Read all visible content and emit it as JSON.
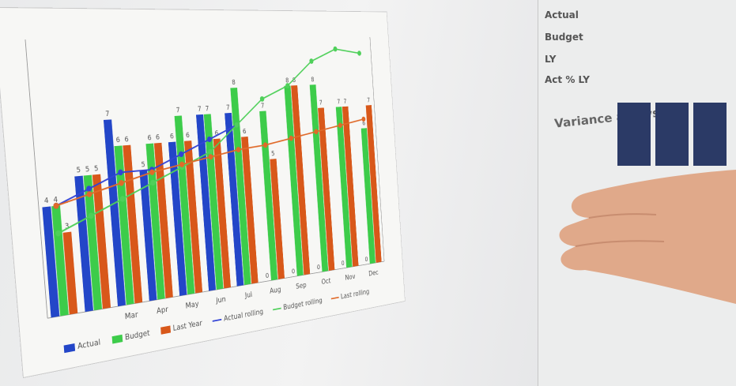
{
  "chart_data": {
    "type": "bar",
    "categories": [
      null,
      null,
      "Mar",
      "Apr",
      "May",
      "Jun",
      "Jul",
      "Aug",
      "Sep",
      "Oct",
      "Nov",
      "Dec"
    ],
    "ylim": [
      0,
      10
    ],
    "series": [
      {
        "name": "Actual",
        "color": "#2346c8",
        "kind": "bar",
        "values": [
          4,
          5,
          7,
          5,
          6,
          7,
          7,
          0,
          0,
          0,
          0,
          0
        ]
      },
      {
        "name": "Budget",
        "color": "#3dcc4a",
        "kind": "bar",
        "values": [
          4,
          5,
          6,
          6,
          7,
          7,
          8,
          7,
          8,
          8,
          7,
          6
        ]
      },
      {
        "name": "Last Year",
        "color": "#d8581a",
        "kind": "bar",
        "values": [
          3,
          5,
          6,
          6,
          6,
          6,
          6,
          5,
          8,
          7,
          7,
          7
        ]
      },
      {
        "name": "Actual rolling",
        "color": "#3344d6",
        "kind": "line",
        "values": [
          4,
          4.5,
          5,
          5,
          5.5,
          6,
          6.5,
          null,
          null,
          null,
          null,
          null
        ]
      },
      {
        "name": "Budget rolling",
        "color": "#4fd05a",
        "kind": "line",
        "values": [
          3,
          3.5,
          4,
          4.5,
          5,
          5.5,
          6.5,
          7.5,
          8,
          9,
          9.5,
          9.3
        ]
      },
      {
        "name": "Last rolling",
        "color": "#e06a2a",
        "kind": "line",
        "values": [
          4,
          4.3,
          4.6,
          4.9,
          5.1,
          5.3,
          5.5,
          5.6,
          5.8,
          6,
          6.2,
          6.4
        ]
      }
    ]
  },
  "side_panel": {
    "rows": [
      "Actual",
      "Budget",
      "LY",
      "Act % LY"
    ],
    "heading": "Variance analysis"
  }
}
